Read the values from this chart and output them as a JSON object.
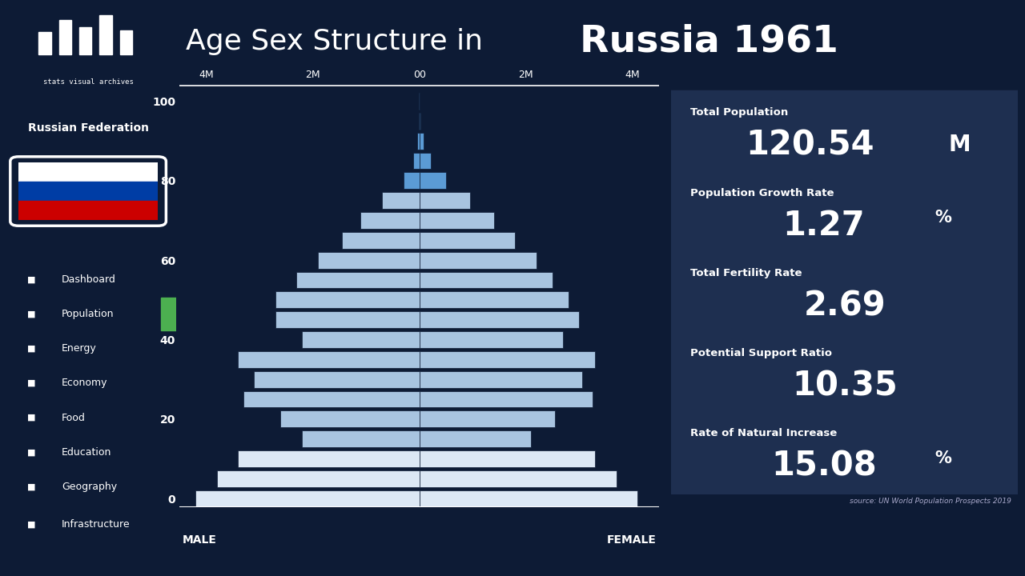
{
  "title_normal": "Age Sex Structure in ",
  "title_bold": "Russia 1961",
  "bg_color": "#0d1b35",
  "sidebar_color": "#0d1b35",
  "bar_color_light": "#a8c4e0",
  "bar_color_white": "#dce8f5",
  "bar_color_medium": "#5b9bd5",
  "text_color": "#ffffff",
  "stats_bg": "#1e2f50",
  "male_values": [
    4200,
    3800,
    3400,
    2200,
    2600,
    3300,
    3100,
    3400,
    2200,
    2700,
    2700,
    2300,
    1900,
    1450,
    1100,
    700,
    300,
    120,
    40,
    10,
    2
  ],
  "female_values": [
    4100,
    3700,
    3300,
    2100,
    2550,
    3250,
    3050,
    3300,
    2700,
    3000,
    2800,
    2500,
    2200,
    1800,
    1400,
    950,
    500,
    220,
    80,
    20,
    3
  ],
  "stats": [
    {
      "label": "Total Population",
      "value": "120.54",
      "unit": "M",
      "unit_small": false
    },
    {
      "label": "Population Growth Rate",
      "value": "1.27",
      "unit": "%",
      "unit_small": true
    },
    {
      "label": "Total Fertility Rate",
      "value": "2.69",
      "unit": "",
      "unit_small": false
    },
    {
      "label": "Potential Support Ratio",
      "value": "10.35",
      "unit": "",
      "unit_small": false
    },
    {
      "label": "Rate of Natural Increase",
      "value": "15.08",
      "unit": "%",
      "unit_small": true
    }
  ],
  "sidebar_items": [
    "Dashboard",
    "Population",
    "Energy",
    "Economy",
    "Food",
    "Education",
    "Geography",
    "Infrastructure"
  ],
  "country_name": "Russian Federation",
  "source_text": "source: UN World Population Prospects 2019",
  "xlim": 4500
}
